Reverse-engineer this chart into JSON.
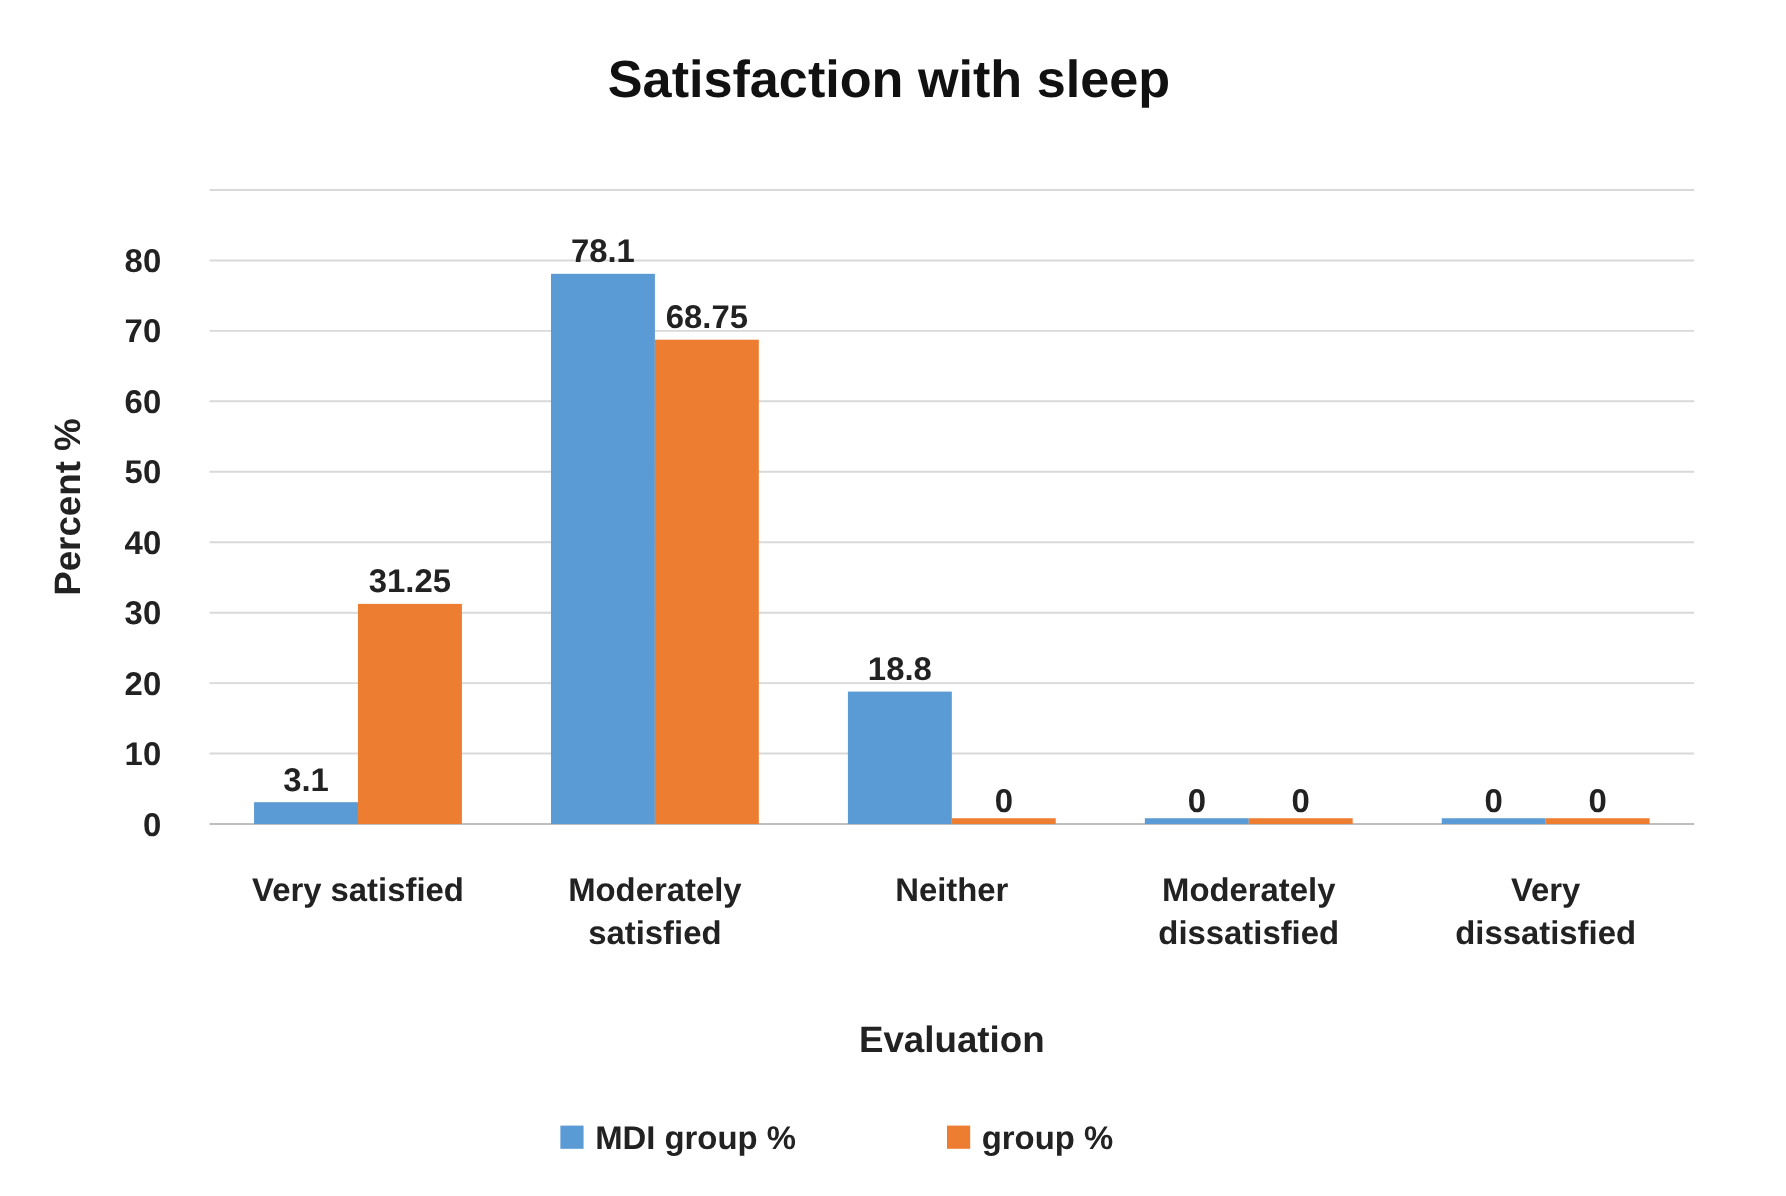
{
  "chart_data": {
    "type": "bar",
    "title": "Satisfaction with sleep",
    "xlabel": "Evaluation",
    "ylabel": "Percent %",
    "categories": [
      "Very satisfied",
      "Moderately satisfied",
      "Neither",
      "Moderately dissatisfied",
      "Very dissatisfied"
    ],
    "series": [
      {
        "name": "MDI group %",
        "color": "#5b9bd5",
        "values": [
          3.1,
          78.1,
          18.8,
          0,
          0
        ]
      },
      {
        "name": "group %",
        "color": "#ed7d31",
        "values": [
          31.25,
          68.75,
          0,
          0,
          0
        ]
      }
    ],
    "ylim": [
      0,
      90
    ],
    "yticks": [
      0,
      10,
      20,
      30,
      40,
      50,
      60,
      70,
      80,
      {
        "value": 90,
        "label": null
      }
    ],
    "grid": "y",
    "legend": "bottom",
    "data_labels": true
  }
}
